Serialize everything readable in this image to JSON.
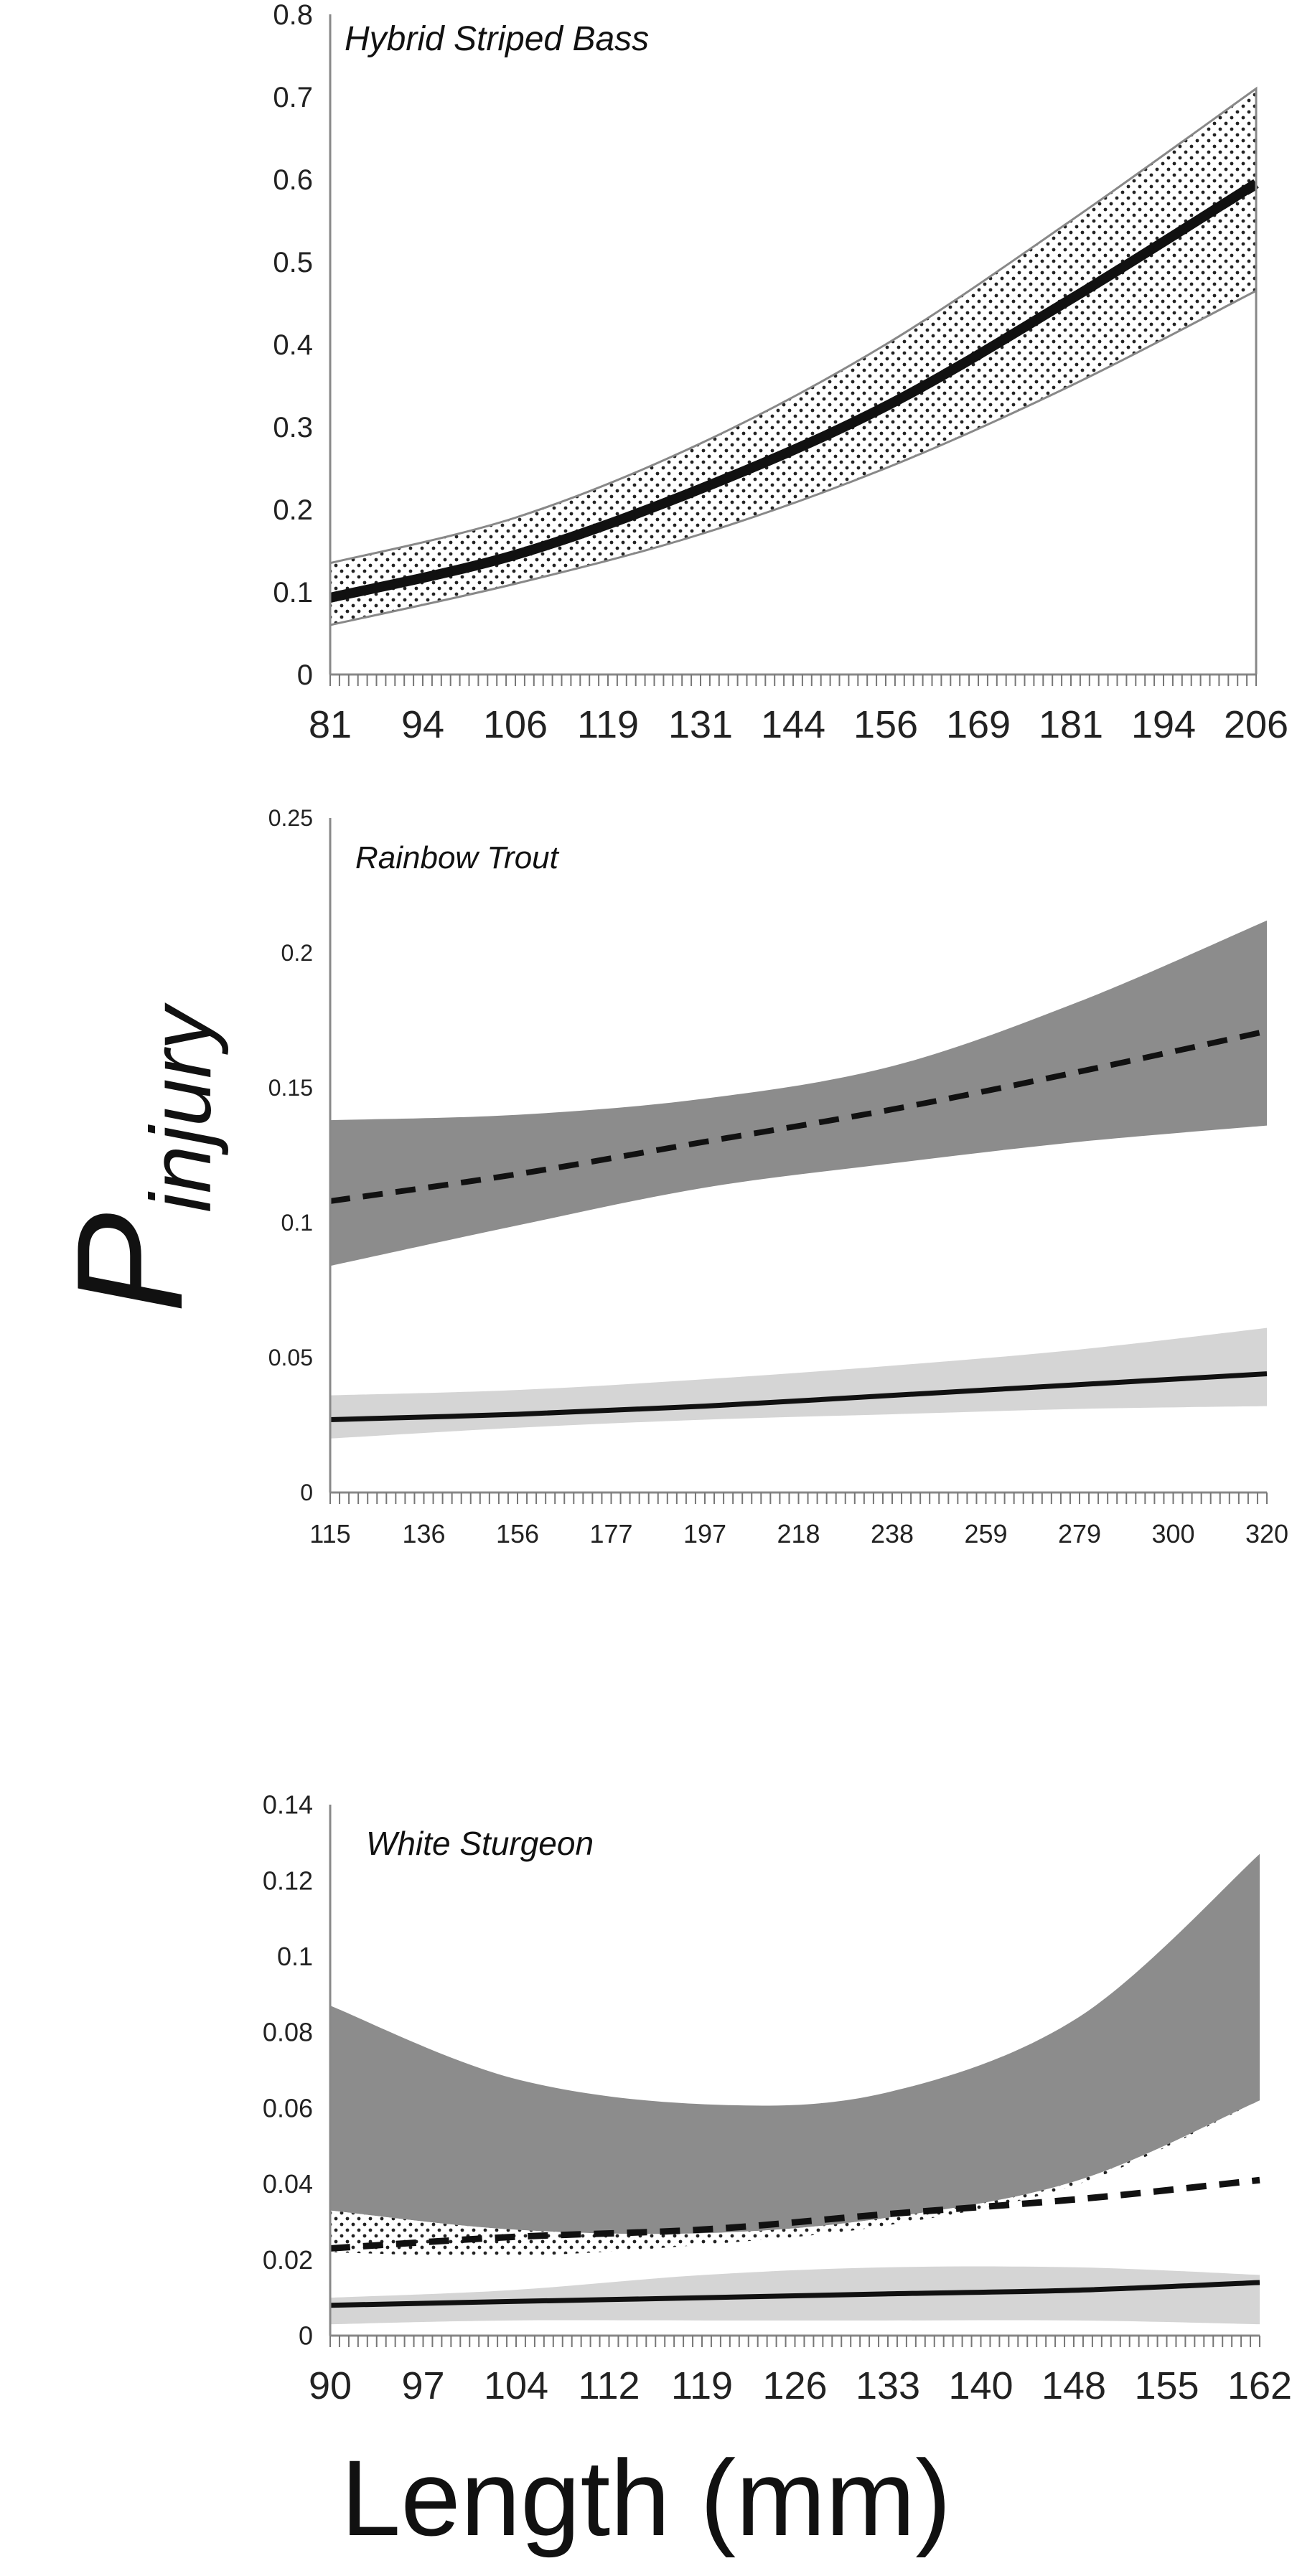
{
  "ylabel": {
    "main": "P",
    "sub": "injury"
  },
  "xlabel": "Length (mm)",
  "chart_data": [
    {
      "type": "line",
      "title": "Hybrid Striped Bass",
      "ylim": [
        0,
        0.8
      ],
      "yticks": [
        "0",
        "0.1",
        "0.2",
        "0.3",
        "0.4",
        "0.5",
        "0.6",
        "0.7",
        "0.8"
      ],
      "xticks": [
        "81",
        "94",
        "106",
        "119",
        "131",
        "144",
        "156",
        "169",
        "181",
        "194",
        "206"
      ],
      "x": [
        81,
        106,
        131,
        156,
        181,
        206
      ],
      "series": [
        {
          "values": [
            0.093,
            0.145,
            0.225,
            0.325,
            0.455,
            0.595
          ]
        },
        {
          "values": [
            0.093,
            0.145,
            0.225,
            0.325,
            0.455,
            0.59
          ]
        }
      ],
      "bands": [
        {
          "lower": [
            0.06,
            0.11,
            0.17,
            0.25,
            0.35,
            0.465
          ],
          "upper": [
            0.135,
            0.19,
            0.28,
            0.4,
            0.55,
            0.71
          ]
        }
      ]
    },
    {
      "type": "line",
      "title": "Rainbow Trout",
      "ylim": [
        0,
        0.25
      ],
      "yticks": [
        "0",
        "0.05",
        "0.1",
        "0.15",
        "0.2",
        "0.25"
      ],
      "xticks": [
        "115",
        "136",
        "156",
        "177",
        "197",
        "218",
        "238",
        "259",
        "279",
        "300",
        "320"
      ],
      "x": [
        115,
        156,
        197,
        238,
        279,
        320
      ],
      "series": [
        {
          "values": [
            0.108,
            0.118,
            0.13,
            0.142,
            0.156,
            0.171
          ]
        },
        {
          "values": [
            0.027,
            0.029,
            0.032,
            0.036,
            0.04,
            0.044
          ]
        }
      ],
      "bands": [
        {
          "lower": [
            0.084,
            0.099,
            0.113,
            0.122,
            0.13,
            0.136
          ],
          "upper": [
            0.138,
            0.14,
            0.146,
            0.158,
            0.182,
            0.212
          ]
        },
        {
          "lower": [
            0.02,
            0.024,
            0.027,
            0.029,
            0.031,
            0.032
          ],
          "upper": [
            0.036,
            0.038,
            0.042,
            0.047,
            0.053,
            0.061
          ]
        }
      ]
    },
    {
      "type": "line",
      "title": "White Sturgeon",
      "ylim": [
        0,
        0.14
      ],
      "yticks": [
        "0",
        "0.02",
        "0.04",
        "0.06",
        "0.08",
        "0.1",
        "0.12",
        "0.14"
      ],
      "xticks": [
        "90",
        "97",
        "104",
        "112",
        "119",
        "126",
        "133",
        "140",
        "148",
        "155",
        "162"
      ],
      "x": [
        90,
        104,
        119,
        133,
        148,
        162
      ],
      "series": [
        {
          "values": [
            0.023,
            0.026,
            0.028,
            0.032,
            0.036,
            0.041
          ]
        },
        {
          "values": [
            0.008,
            0.009,
            0.01,
            0.011,
            0.012,
            0.014
          ]
        }
      ],
      "bands": [
        {
          "lower": [
            0.033,
            0.028,
            0.027,
            0.031,
            0.041,
            0.062
          ],
          "upper": [
            0.087,
            0.068,
            0.061,
            0.064,
            0.084,
            0.127
          ]
        },
        {
          "lower": [
            0.022,
            0.021,
            0.024,
            0.029,
            0.04,
            0.062
          ],
          "upper": [
            0.033,
            0.028,
            0.027,
            0.031,
            0.041,
            0.062
          ]
        },
        {
          "lower": [
            0.003,
            0.004,
            0.004,
            0.004,
            0.004,
            0.003
          ],
          "upper": [
            0.01,
            0.012,
            0.016,
            0.018,
            0.018,
            0.016
          ]
        }
      ]
    }
  ]
}
